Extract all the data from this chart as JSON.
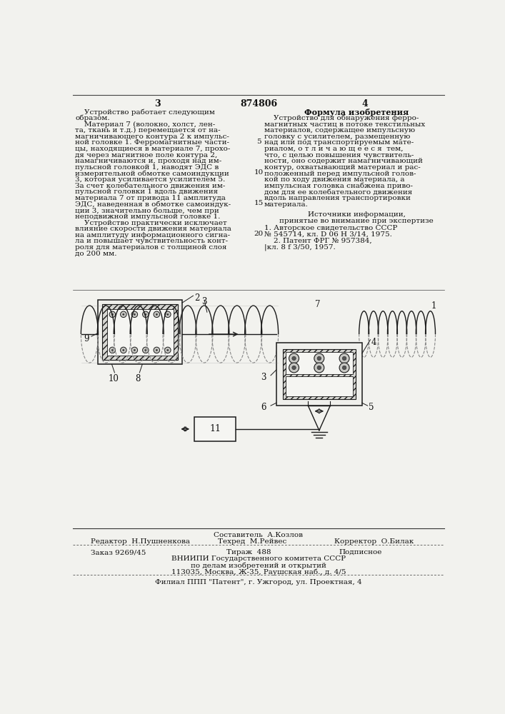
{
  "bg_color": "#f2f2ee",
  "page_color": "#f2f2ee",
  "top_line": "874806",
  "page_left": "3",
  "page_right": "4",
  "left_col_text": [
    "    Устройство работает следующим",
    "образом.",
    "    Материал 7 (волокно, холст, лен-",
    "та, ткань и т.д.) перемещается от на-",
    "магничивающего контура 2 к импульс-",
    "ной головке 1. Ферромагнитные части-",
    "цы, находящиеся в материале 7, прохо-",
    "дя через магнитное поле контура 2,",
    "намагничиваются и, проходя над им-",
    "пульсной головкой 1, наводят ЭДС в",
    "измерительной обмотке самоиндукции",
    "3, которая усиливается усилителем 5.",
    "За счет колебательного движения им-",
    "пульсной головки 1 вдоль движения",
    "материала 7 от привода 11 амплитуда",
    "ЭДС, наведенная в обмотке самоиндук-",
    "ции 3, значительно больше, чем при",
    "неподвижной импульсной головке 1.",
    "    Устройство практически исключает",
    "влияние скорости движения материала",
    "на амплитуду информационного сигна-",
    "ла и повышает чувствительность конт-",
    "роля для материалов с толщиной слоя",
    "до 200 мм."
  ],
  "right_col_title": "Формула изобретения",
  "right_col_text": [
    "    Устройство для обнаружения ферро-",
    "магнитных частиц в потоке текстильных",
    "материалов, содержащее импульсную",
    "головку с усилителем, размещенную",
    "над или под транспортируемым мате-",
    "риалом, о т л и ч а ю щ е е с я  тем,",
    "что, с целью повышения чувствитель-",
    "ности, оно содержит намагничивающий",
    "контур, охватывающий материал и рас-",
    "положенный перед импульсной голов-",
    "кой по ходу движения материала, а",
    "импульсная головка снабжена приво-",
    "дом для ее колебательного движения",
    "вдоль направления транспортировки",
    "материала."
  ],
  "sources_title": "Источники информации,",
  "sources_subtitle": "принятые во внимание при экспертизе",
  "source1": "1. Авторское свидетельство СССР",
  "source2": "№ 545714, кл. D 06 H 3/14, 1975.",
  "source3": "    2. Патент ФРГ № 957384,",
  "source4": "|кл. 8 f 3/50, 1957.",
  "line_numbers": [
    "5",
    "10",
    "15",
    "20"
  ],
  "footer_composer": "Составитель  А.Козлов",
  "footer_editor": "Редактор  Н.Пушненкова",
  "footer_techred": "Техред  М.Рейвес",
  "footer_corrector": "Корректор  О.Билак",
  "footer_order": "Заказ 9269/45",
  "footer_tirazh": "Тираж  488",
  "footer_podpisnoe": "Подписное",
  "footer_vniipii1": "ВНИИПИ Государственного комитета СССР",
  "footer_vniipii2": "по делам изобретений и открытий",
  "footer_address": "113035, Москва, Ж-35, Раушская наб., д. 4/5",
  "footer_filial": "Филиал ППП \"Патент\", г. Ужгород, ул. Проектная, 4"
}
